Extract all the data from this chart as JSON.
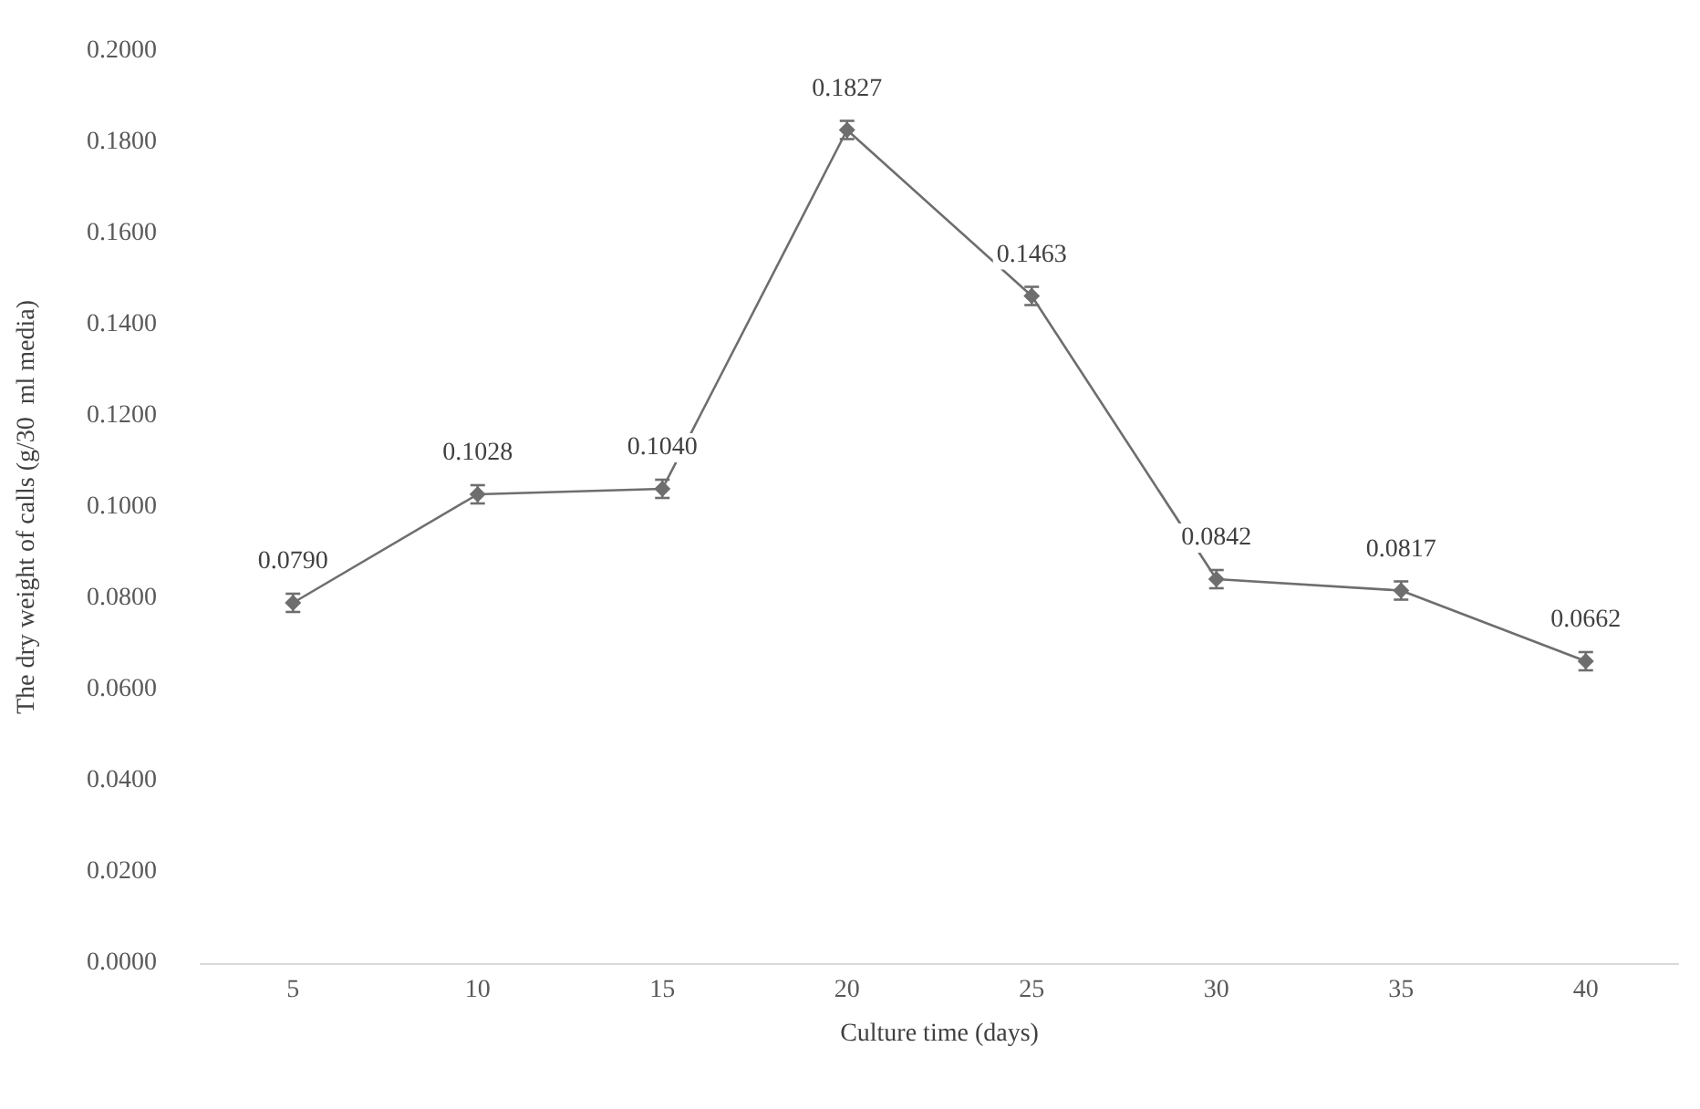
{
  "chart_data": {
    "type": "line",
    "xlabel": "Culture time (days)",
    "ylabel": "The dry weight of calls (g/30  ml media)",
    "categories": [
      "5",
      "10",
      "15",
      "20",
      "25",
      "30",
      "35",
      "40"
    ],
    "series": [
      {
        "color": "#6e6e6e",
        "values": [
          0.079,
          0.1028,
          0.104,
          0.1827,
          0.1463,
          0.0842,
          0.0817,
          0.0662
        ],
        "errors": [
          0.002,
          0.002,
          0.002,
          0.002,
          0.002,
          0.002,
          0.002,
          0.002
        ],
        "value_labels": [
          "0.0790",
          "0.1028",
          "0.1040",
          "0.1827",
          "0.1463",
          "0.0842",
          "0.0817",
          "0.0662"
        ]
      }
    ],
    "ylim": [
      0,
      0.2
    ],
    "yticks": [
      {
        "value": 0,
        "label": "0.0000"
      },
      {
        "value": 0.02,
        "label": "0.0200"
      },
      {
        "value": 0.04,
        "label": "0.0400"
      },
      {
        "value": 0.06,
        "label": "0.0600"
      },
      {
        "value": 0.08,
        "label": "0.0800"
      },
      {
        "value": 0.1,
        "label": "0.1000"
      },
      {
        "value": 0.12,
        "label": "0.1200"
      },
      {
        "value": 0.14,
        "label": "0.1400"
      },
      {
        "value": 0.16,
        "label": "0.1600"
      },
      {
        "value": 0.18,
        "label": "0.1800"
      },
      {
        "value": 0.2,
        "label": "0.2000"
      }
    ],
    "grid": false,
    "marker": "diamond",
    "line_style": "solid"
  }
}
